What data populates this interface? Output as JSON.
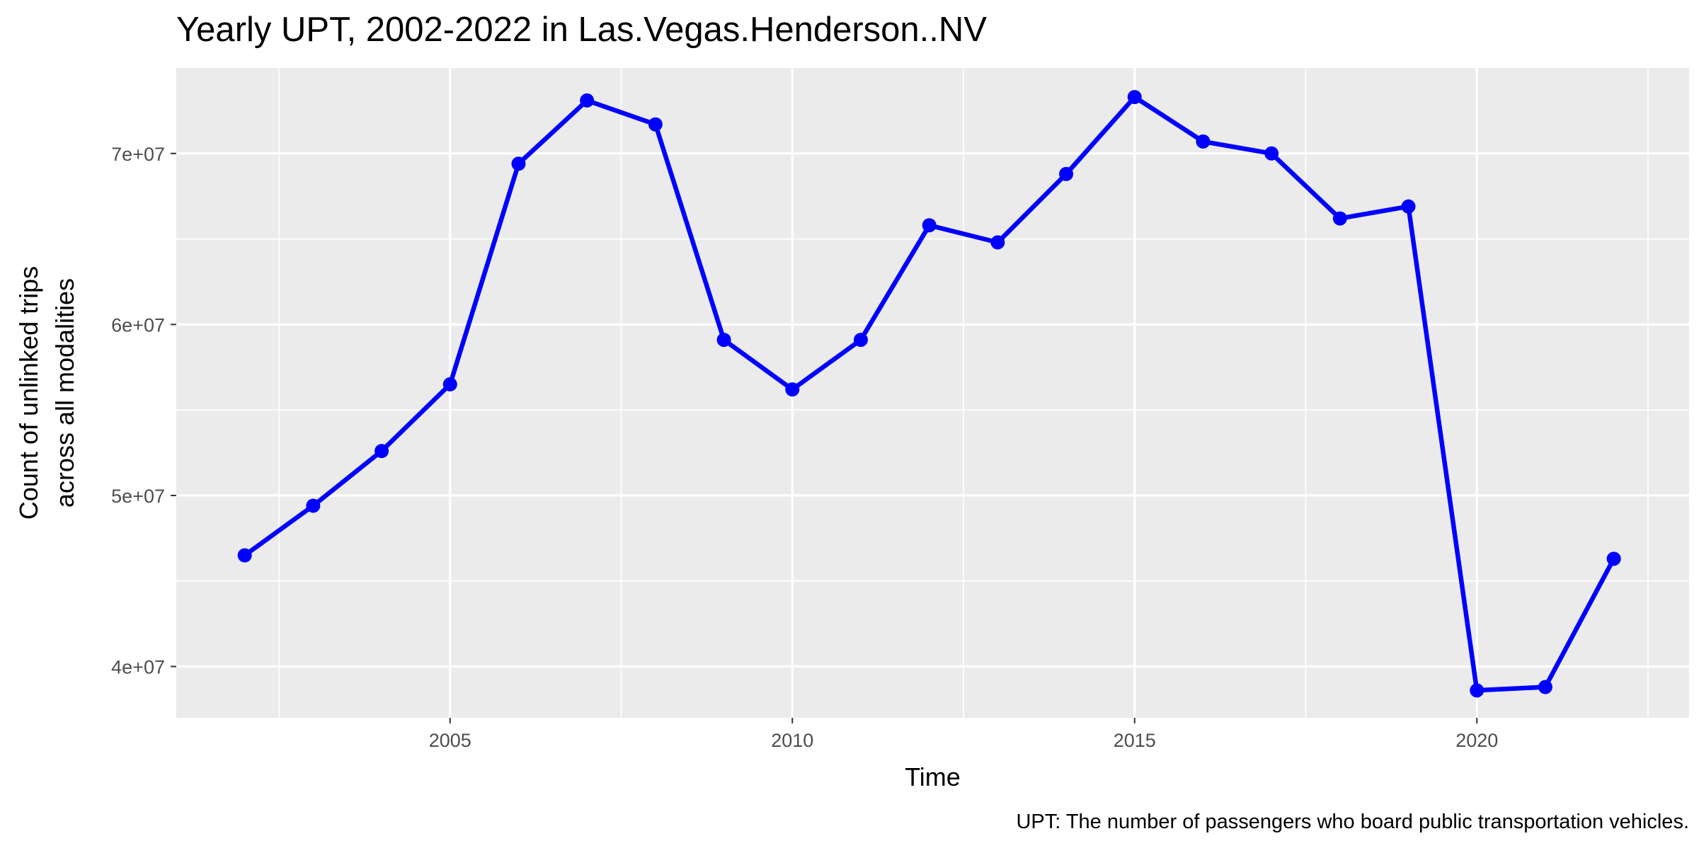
{
  "chart_data": {
    "type": "line",
    "title": "Yearly UPT, 2002-2022 in Las.Vegas.Henderson..NV",
    "xlabel": "Time",
    "ylabel_lines": [
      "Count of unlinked trips",
      "across all modalities"
    ],
    "caption": "UPT: The number of passengers who board public transportation vehicles.",
    "x": [
      2002,
      2003,
      2004,
      2005,
      2006,
      2007,
      2008,
      2009,
      2010,
      2011,
      2012,
      2013,
      2014,
      2015,
      2016,
      2017,
      2018,
      2019,
      2020,
      2021,
      2022
    ],
    "series": [
      {
        "values": [
          46500000,
          49400000,
          52600000,
          56500000,
          69400000,
          73100000,
          71700000,
          59100000,
          56200000,
          59100000,
          65800000,
          64800000,
          68800000,
          73300000,
          70700000,
          70000000,
          66200000,
          66900000,
          38600000,
          38800000,
          46300000
        ],
        "color": "#0000ff"
      }
    ],
    "xlim": [
      2001.0,
      2023.1
    ],
    "ylim": [
      37000000,
      75000000
    ],
    "x_ticks": [
      2005,
      2010,
      2015,
      2020
    ],
    "x_tick_labels": [
      "2005",
      "2010",
      "2015",
      "2020"
    ],
    "x_minor_ticks": [
      2002.5,
      2007.5,
      2012.5,
      2017.5,
      2022.5
    ],
    "y_ticks": [
      40000000,
      50000000,
      60000000,
      70000000
    ],
    "y_tick_labels": [
      "4e+07",
      "5e+07",
      "6e+07",
      "7e+07"
    ],
    "y_minor_ticks": [
      45000000,
      55000000,
      65000000
    ],
    "grid": true,
    "panel_color": "#ebebeb"
  }
}
